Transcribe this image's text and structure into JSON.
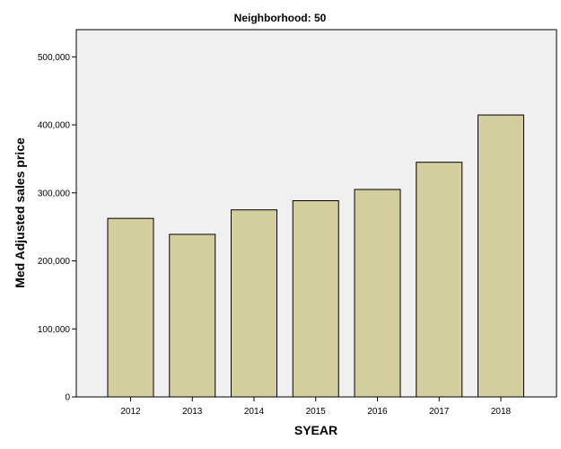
{
  "chart_data": {
    "type": "bar",
    "title": "Neighborhood: 50",
    "xlabel": "SYEAR",
    "ylabel": "Med Adjusted sales price",
    "categories": [
      "2012",
      "2013",
      "2014",
      "2015",
      "2016",
      "2017",
      "2018"
    ],
    "values": [
      262500,
      239000,
      275000,
      288500,
      305000,
      345000,
      414500
    ],
    "ylim": [
      0,
      540000
    ],
    "yticks": [
      0,
      100000,
      200000,
      300000,
      400000,
      500000
    ],
    "ytick_labels": [
      "0",
      "100,000",
      "200,000",
      "300,000",
      "400,000",
      "500,000"
    ],
    "grid": false,
    "colors": {
      "bar_fill": "#d3ce9d",
      "plot_background": "#f0f0f0",
      "bar_stroke": "#000000"
    }
  }
}
